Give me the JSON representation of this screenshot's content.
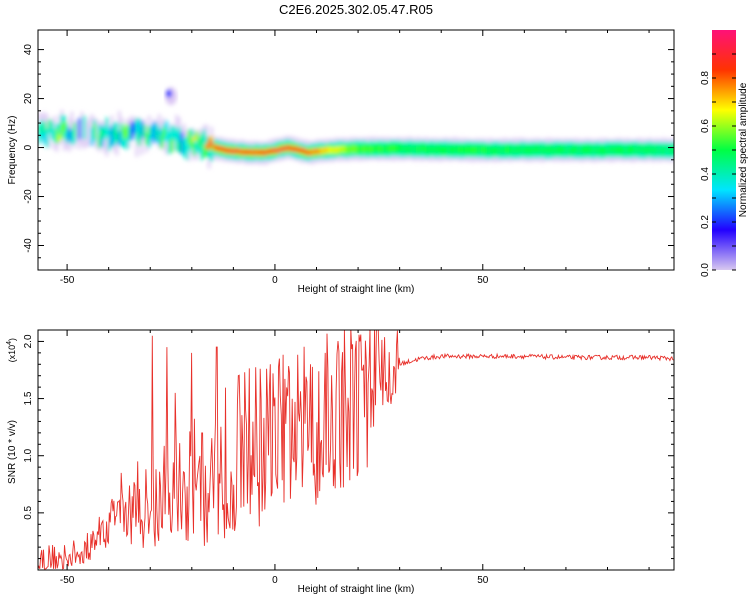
{
  "title": "C2E6.2025.302.05.47.R05",
  "chart_data": [
    {
      "type": "heatmap",
      "xlabel": "Height of straight line (km)",
      "ylabel": "Frequency (Hz)",
      "xlim": [
        -57,
        96
      ],
      "ylim": [
        -50,
        48
      ],
      "xticks": [
        -50,
        0,
        50
      ],
      "yticks": [
        -40,
        -20,
        0,
        20,
        40
      ],
      "ridge": [
        {
          "x": -57,
          "f": 7,
          "a": 0.52
        },
        {
          "x": -52,
          "f": 6,
          "a": 0.55
        },
        {
          "x": -47,
          "f": 7,
          "a": 0.35
        },
        {
          "x": -42,
          "f": 5,
          "a": 0.42
        },
        {
          "x": -37,
          "f": 6,
          "a": 0.5
        },
        {
          "x": -32,
          "f": 6,
          "a": 0.4
        },
        {
          "x": -27,
          "f": 4,
          "a": 0.45
        },
        {
          "x": -22,
          "f": 3,
          "a": 0.5
        },
        {
          "x": -17,
          "f": 1,
          "a": 0.72
        },
        {
          "x": -12,
          "f": -1,
          "a": 0.95
        },
        {
          "x": -7,
          "f": -2,
          "a": 0.85
        },
        {
          "x": -2,
          "f": -2,
          "a": 0.9
        },
        {
          "x": 3,
          "f": 0,
          "a": 0.95
        },
        {
          "x": 8,
          "f": -2,
          "a": 0.85
        },
        {
          "x": 13,
          "f": -1,
          "a": 0.7
        },
        {
          "x": 20,
          "f": -0.5,
          "a": 0.55
        },
        {
          "x": 30,
          "f": -0.5,
          "a": 0.5
        },
        {
          "x": 50,
          "f": -1,
          "a": 0.5
        },
        {
          "x": 70,
          "f": -1,
          "a": 0.48
        },
        {
          "x": 96,
          "f": -1,
          "a": 0.48
        }
      ],
      "colorbar": {
        "label": "Normalized spectral amplitude",
        "ticks": [
          0.0,
          0.2,
          0.4,
          0.6,
          0.8
        ],
        "range": [
          0,
          1
        ],
        "stops": [
          "#d8c8f0",
          "#2200ff",
          "#00e5ff",
          "#00ff44",
          "#ffff00",
          "#ff3300",
          "#ff1177"
        ]
      }
    },
    {
      "type": "line",
      "xlabel": "Height of straight line (km)",
      "ylabel": "SNR (10 * v/v)",
      "multiplier": "(x10",
      "multiplier_exp": "4",
      "multiplier_close": ")",
      "xlim": [
        -57,
        96
      ],
      "ylim": [
        0,
        2.1
      ],
      "xticks": [
        -50,
        0,
        50
      ],
      "yticks": [
        0.5,
        1.0,
        1.5,
        2.0
      ],
      "ytick_labels": [
        "0.5",
        "1.0",
        "1.5",
        "2.0"
      ],
      "color": "#e8302a",
      "envelope": [
        {
          "x": -57,
          "y": 0.1
        },
        {
          "x": -50,
          "y": 0.1
        },
        {
          "x": -45,
          "y": 0.2
        },
        {
          "x": -40,
          "y": 0.4
        },
        {
          "x": -35,
          "y": 0.5
        },
        {
          "x": -30,
          "y": 0.55
        },
        {
          "x": -25,
          "y": 0.7
        },
        {
          "x": -20,
          "y": 0.75
        },
        {
          "x": -15,
          "y": 0.85
        },
        {
          "x": -10,
          "y": 1.0
        },
        {
          "x": -5,
          "y": 1.1
        },
        {
          "x": 0,
          "y": 1.15
        },
        {
          "x": 5,
          "y": 1.2
        },
        {
          "x": 10,
          "y": 1.3
        },
        {
          "x": 15,
          "y": 1.45
        },
        {
          "x": 20,
          "y": 1.55
        },
        {
          "x": 25,
          "y": 1.7
        },
        {
          "x": 30,
          "y": 1.8
        },
        {
          "x": 35,
          "y": 1.85
        },
        {
          "x": 40,
          "y": 1.87
        },
        {
          "x": 50,
          "y": 1.87
        },
        {
          "x": 60,
          "y": 1.87
        },
        {
          "x": 70,
          "y": 1.86
        },
        {
          "x": 80,
          "y": 1.86
        },
        {
          "x": 90,
          "y": 1.86
        },
        {
          "x": 96,
          "y": 1.85
        }
      ],
      "spikes": [
        {
          "x": -37,
          "y": 0.85
        },
        {
          "x": -33,
          "y": 0.95
        },
        {
          "x": -29.5,
          "y": 2.05
        },
        {
          "x": -26,
          "y": 1.95
        },
        {
          "x": -24,
          "y": 1.55
        },
        {
          "x": -20,
          "y": 1.9
        },
        {
          "x": -17.5,
          "y": 1.2
        },
        {
          "x": -14,
          "y": 1.95
        },
        {
          "x": -9,
          "y": 1.45
        },
        {
          "x": -7,
          "y": 1.4
        },
        {
          "x": 1,
          "y": 1.85
        },
        {
          "x": 6,
          "y": 1.3
        },
        {
          "x": 8.5,
          "y": 1.8
        },
        {
          "x": 12,
          "y": 1.9
        },
        {
          "x": 17,
          "y": 1.65
        },
        {
          "x": 21,
          "y": 1.75
        }
      ]
    }
  ]
}
